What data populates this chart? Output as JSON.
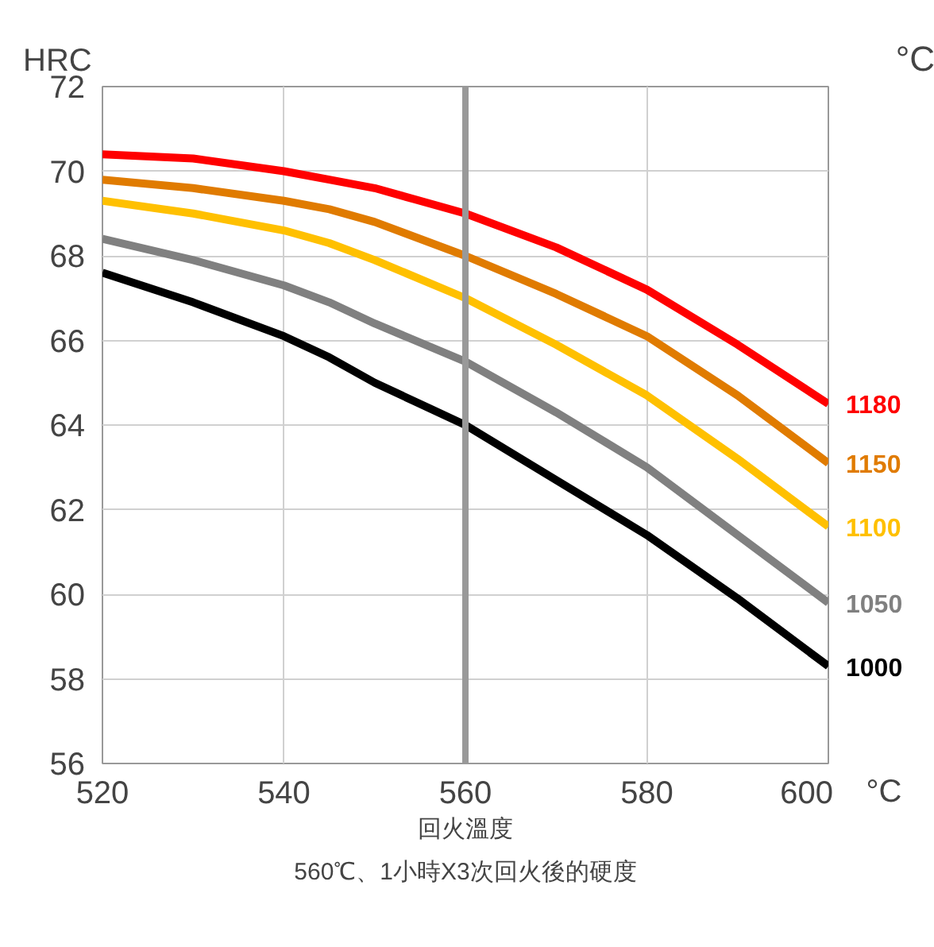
{
  "chart_data": {
    "type": "line",
    "ylabel": "HRC",
    "xlabel": "回火溫度",
    "legend_title": "°C",
    "annotations": [
      "°C",
      "560℃、1小時X3次回火後的硬度"
    ],
    "x": [
      520,
      530,
      540,
      545,
      550,
      560,
      570,
      580,
      590,
      600
    ],
    "xlim": [
      520,
      600
    ],
    "xticks": [
      520,
      540,
      560,
      580,
      600
    ],
    "ylim": [
      56,
      72
    ],
    "yticks": [
      56,
      58,
      60,
      62,
      64,
      66,
      68,
      70,
      72
    ],
    "grid": true,
    "marker": "none",
    "line_style": "solid",
    "ref_lines": [
      {
        "axis": "x",
        "value": 560,
        "label": null,
        "color": "#999999"
      }
    ],
    "series": [
      {
        "name": "1180",
        "color": "#ff0000",
        "values": [
          70.4,
          70.3,
          70.0,
          69.8,
          69.6,
          69.0,
          68.2,
          67.2,
          65.9,
          64.5
        ]
      },
      {
        "name": "1150",
        "color": "#e07b00",
        "values": [
          69.8,
          69.6,
          69.3,
          69.1,
          68.8,
          68.0,
          67.1,
          66.1,
          64.7,
          63.1
        ]
      },
      {
        "name": "1100",
        "color": "#ffc000",
        "values": [
          69.3,
          69.0,
          68.6,
          68.3,
          67.9,
          67.0,
          65.9,
          64.7,
          63.2,
          61.6
        ]
      },
      {
        "name": "1050",
        "color": "#808080",
        "values": [
          68.4,
          67.9,
          67.3,
          66.9,
          66.4,
          65.5,
          64.3,
          63.0,
          61.4,
          59.8
        ]
      },
      {
        "name": "1000",
        "color": "#000000",
        "values": [
          67.6,
          66.9,
          66.1,
          65.6,
          65.0,
          64.0,
          62.7,
          61.4,
          59.9,
          58.3
        ]
      }
    ]
  }
}
